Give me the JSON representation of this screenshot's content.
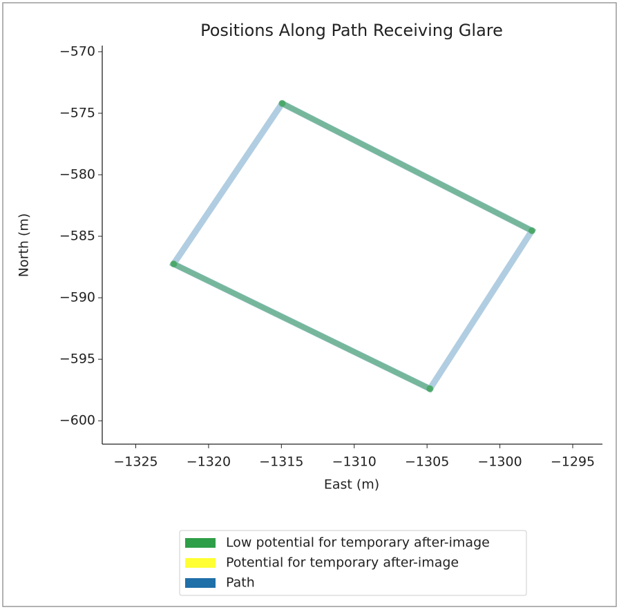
{
  "chart_data": {
    "type": "line",
    "title": "Positions Along Path Receiving Glare",
    "x_label": "East (m)",
    "y_label": "North (m)",
    "xlim": [
      -1327.3,
      -1292.96
    ],
    "ylim": [
      -601.9,
      -569.5
    ],
    "xticks": [
      {
        "value": -1325,
        "label": "−1325"
      },
      {
        "value": -1320,
        "label": "−1320"
      },
      {
        "value": -1315,
        "label": "−1315"
      },
      {
        "value": -1310,
        "label": "−1310"
      },
      {
        "value": -1305,
        "label": "−1305"
      },
      {
        "value": -1300,
        "label": "−1300"
      },
      {
        "value": -1295,
        "label": "−1295"
      }
    ],
    "yticks": [
      {
        "value": -570,
        "label": "−570"
      },
      {
        "value": -575,
        "label": "−575"
      },
      {
        "value": -580,
        "label": "−580"
      },
      {
        "value": -585,
        "label": "−585"
      },
      {
        "value": -590,
        "label": "−590"
      },
      {
        "value": -595,
        "label": "−595"
      },
      {
        "value": -600,
        "label": "−600"
      }
    ],
    "legend_position": "below",
    "series": [
      {
        "name": "Low potential for temporary after-image",
        "color": "#2e9e48",
        "x": [
          -1314.95,
          -1297.8,
          null,
          -1322.4,
          -1304.8
        ],
        "values": [
          -574.2,
          -584.55,
          null,
          -587.25,
          -597.4
        ]
      },
      {
        "name": "Potential for temporary after-image",
        "color": "#ffff33",
        "x": [],
        "values": []
      },
      {
        "name": "Path",
        "color": "#1f6fa8",
        "x": [
          -1314.95,
          -1297.8,
          -1304.8,
          -1322.4,
          -1314.95
        ],
        "values": [
          -574.2,
          -584.55,
          -597.4,
          -587.25,
          -574.2
        ]
      }
    ]
  }
}
